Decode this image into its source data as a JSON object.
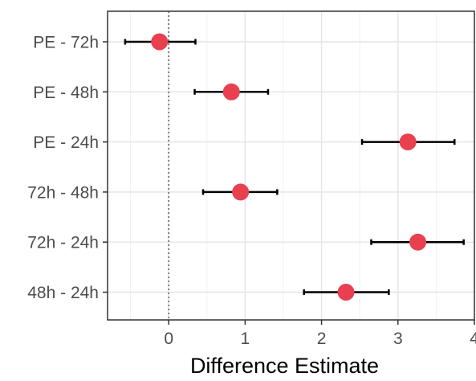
{
  "chart_data": {
    "type": "scatter",
    "subtype": "dot-and-whisker",
    "title": "",
    "xlabel": "Difference Estimate",
    "ylabel": "",
    "xlim": [
      -0.8,
      4.0
    ],
    "x_ticks": [
      0,
      1,
      2,
      3,
      4
    ],
    "grid": true,
    "reference_line": {
      "x": 0,
      "style": "dotted",
      "color": "#7f7f7f"
    },
    "point_color": "#e8404f",
    "errorbar_color": "#000000",
    "categories": [
      "PE - 72h",
      "PE - 48h",
      "PE - 24h",
      "72h - 48h",
      "72h - 24h",
      "48h - 24h"
    ],
    "series": [
      {
        "estimates": [
          -0.12,
          0.82,
          3.13,
          0.94,
          3.26,
          2.32
        ],
        "lower": [
          -0.57,
          0.34,
          2.53,
          0.45,
          2.65,
          1.77
        ],
        "upper": [
          0.35,
          1.3,
          3.74,
          1.42,
          3.86,
          2.88
        ]
      }
    ]
  }
}
